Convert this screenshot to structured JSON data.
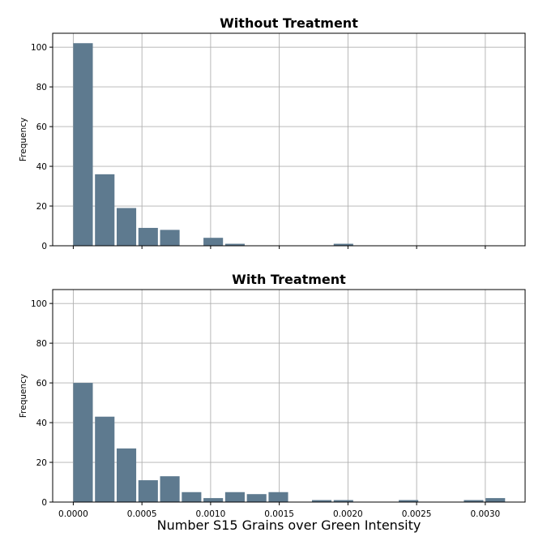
{
  "chart_data": [
    {
      "type": "bar",
      "title": "Without Treatment",
      "ylabel": "Frequency",
      "xlabel": "",
      "grid": true,
      "bar_color": "#5e7a8f",
      "xlim": [
        -0.00015,
        0.00329
      ],
      "ylim": [
        0,
        107
      ],
      "xticks": [
        0.0,
        0.0005,
        0.001,
        0.0015,
        0.002,
        0.0025,
        0.003
      ],
      "xtick_labels": [],
      "yticks": [
        0,
        20,
        40,
        60,
        80,
        100
      ],
      "ytick_labels": [
        "0",
        "20",
        "40",
        "60",
        "80",
        "100"
      ],
      "bin_width": 0.000158,
      "bin_starts": [
        0.0,
        0.000158,
        0.000316,
        0.000474,
        0.000632,
        0.00079,
        0.000948,
        0.001106,
        0.001264,
        0.001422,
        0.00158,
        0.001738,
        0.001896,
        0.002054,
        0.002212,
        0.00237,
        0.002528,
        0.002686,
        0.002844,
        0.003002
      ],
      "values": [
        102,
        36,
        19,
        9,
        8,
        0,
        4,
        1,
        0,
        0,
        0,
        0,
        1,
        0,
        0,
        0,
        0,
        0,
        0,
        0
      ]
    },
    {
      "type": "bar",
      "title": "With Treatment",
      "ylabel": "Frequency",
      "xlabel": "Number S15 Grains over Green Intensity",
      "grid": true,
      "bar_color": "#5e7a8f",
      "xlim": [
        -0.00015,
        0.00329
      ],
      "ylim": [
        0,
        107
      ],
      "xticks": [
        0.0,
        0.0005,
        0.001,
        0.0015,
        0.002,
        0.0025,
        0.003
      ],
      "xtick_labels": [
        "0.0000",
        "0.0005",
        "0.0010",
        "0.0015",
        "0.0020",
        "0.0025",
        "0.0030"
      ],
      "yticks": [
        0,
        20,
        40,
        60,
        80,
        100
      ],
      "ytick_labels": [
        "0",
        "20",
        "40",
        "60",
        "80",
        "100"
      ],
      "bin_width": 0.000158,
      "bin_starts": [
        0.0,
        0.000158,
        0.000316,
        0.000474,
        0.000632,
        0.00079,
        0.000948,
        0.001106,
        0.001264,
        0.001422,
        0.00158,
        0.001738,
        0.001896,
        0.002054,
        0.002212,
        0.00237,
        0.002528,
        0.002686,
        0.002844,
        0.003002
      ],
      "values": [
        60,
        43,
        27,
        11,
        13,
        5,
        2,
        5,
        4,
        5,
        0,
        1,
        1,
        0,
        0,
        1,
        0,
        0,
        1,
        2
      ]
    }
  ]
}
